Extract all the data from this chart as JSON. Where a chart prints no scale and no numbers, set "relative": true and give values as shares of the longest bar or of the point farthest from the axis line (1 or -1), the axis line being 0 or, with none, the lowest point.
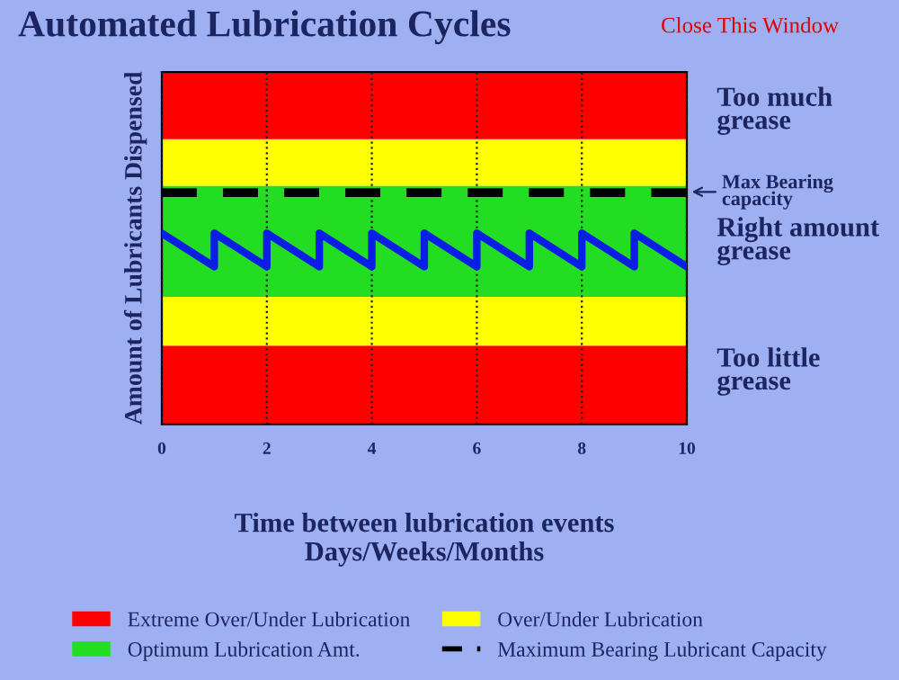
{
  "chart_data": {
    "type": "line",
    "title": "Automated Lubrication Cycles",
    "xlabel": "Time between lubrication events\nDays/Weeks/Months",
    "ylabel": "Amount of Lubricants Dispensed",
    "relative": true,
    "xlim": [
      0,
      10
    ],
    "xticks": [
      0,
      2,
      4,
      6,
      8,
      10
    ],
    "grid": "x",
    "legend": "bottom",
    "series": [
      {
        "name": null,
        "color": "#0a1ee6",
        "line_style": "solid",
        "x": [
          0,
          1,
          1,
          2,
          2,
          3,
          3,
          4,
          4,
          5,
          5,
          6,
          6,
          7,
          7,
          8,
          8,
          9,
          9,
          10
        ],
        "values": [
          0.825,
          0.68,
          0.825,
          0.68,
          0.825,
          0.68,
          0.825,
          0.68,
          0.825,
          0.68,
          0.825,
          0.68,
          0.825,
          0.68,
          0.825,
          0.68,
          0.825,
          0.68,
          0.825,
          0.68
        ]
      },
      {
        "name": "Maximum Bearing Lubricant Capacity",
        "color": "#000000",
        "line_style": "dashed",
        "x": [
          0,
          10
        ],
        "values": [
          1,
          1
        ]
      }
    ],
    "bands": [
      {
        "axis": "y",
        "from": 0,
        "to": 0.34,
        "color": "#ff0000",
        "label": "Extreme Over/Under Lubrication"
      },
      {
        "axis": "y",
        "from": 0.34,
        "to": 0.55,
        "color": "#ffff00",
        "label": "Over/Under Lubrication"
      },
      {
        "axis": "y",
        "from": 0.55,
        "to": 1.03,
        "color": "#22dd22",
        "label": "Optimum Lubrication Amt."
      },
      {
        "axis": "y",
        "from": 1.03,
        "to": 1.23,
        "color": "#ffff00"
      },
      {
        "axis": "y",
        "from": 1.23,
        "to": 1.52,
        "color": "#ff0000"
      }
    ],
    "annotations": [
      "Too much\ngrease",
      "Max Bearing\ncapacity",
      "Right amount\ngrease",
      "Too little\ngrease",
      "Close This Window"
    ]
  }
}
